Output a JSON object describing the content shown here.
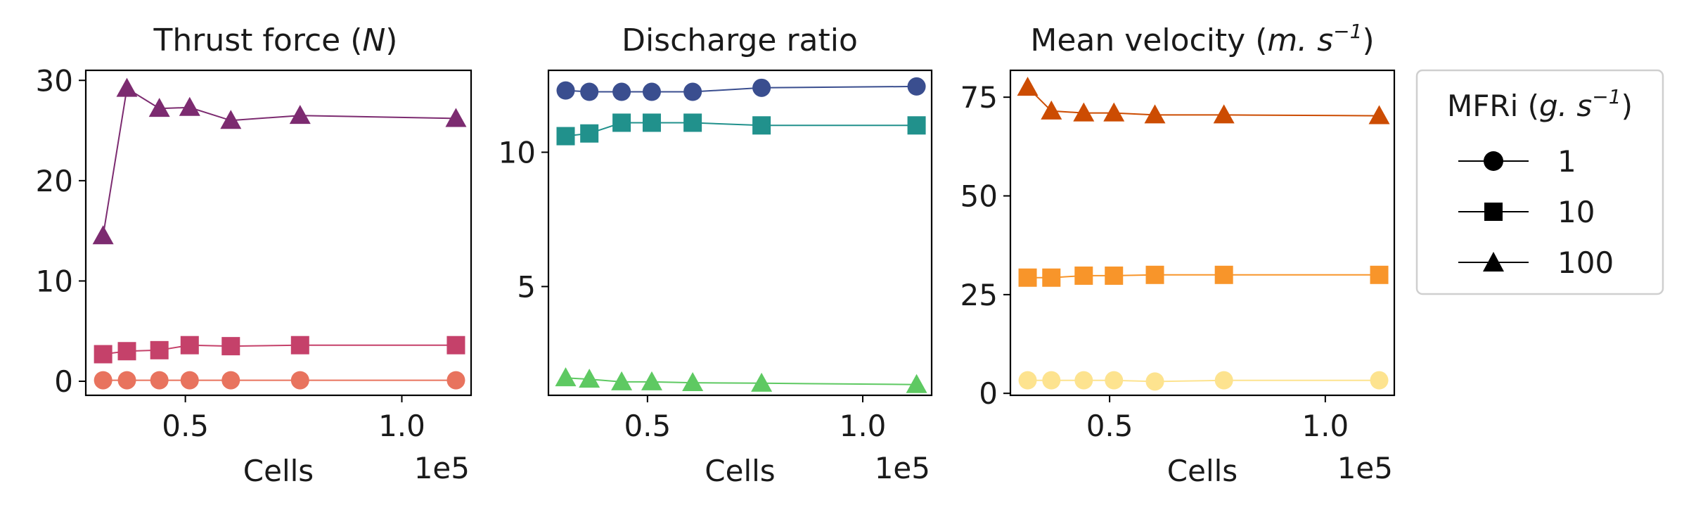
{
  "figure": {
    "panel_titles": [
      "Thrust force",
      "Discharge ratio",
      "Mean velocity"
    ],
    "title_units": {
      "thrust": "N",
      "velocity_base": "m. s",
      "velocity_exp": "−1"
    },
    "legend": {
      "title_base": "MFRi ",
      "title_unit": "g. s",
      "title_exp": "−1",
      "entries": [
        {
          "label": "1",
          "marker": "circle"
        },
        {
          "label": "10",
          "marker": "square"
        },
        {
          "label": "100",
          "marker": "triangle"
        }
      ]
    }
  },
  "chart_data": [
    {
      "type": "line",
      "title": "Thrust force (N)",
      "xlabel": "Cells",
      "x_multiplier": "1e5",
      "x": [
        0.31,
        0.365,
        0.44,
        0.51,
        0.605,
        0.765,
        1.125
      ],
      "xlim": [
        0.27,
        1.16
      ],
      "xticks": [
        0.5,
        1.0
      ],
      "xtick_labels": [
        "0.5",
        "1.0"
      ],
      "ylim": [
        -1.4,
        31
      ],
      "yticks": [
        0,
        10,
        20,
        30
      ],
      "ytick_labels": [
        "0",
        "10",
        "20",
        "30"
      ],
      "series": [
        {
          "name": "1",
          "marker": "circle",
          "color": "#e8735e",
          "values": [
            0.1,
            0.1,
            0.1,
            0.1,
            0.1,
            0.1,
            0.1
          ]
        },
        {
          "name": "10",
          "marker": "square",
          "color": "#c5416a",
          "values": [
            2.7,
            3.0,
            3.1,
            3.6,
            3.5,
            3.6,
            3.6
          ]
        },
        {
          "name": "100",
          "marker": "triangle",
          "color": "#7c2b70",
          "values": [
            14.5,
            29.2,
            27.2,
            27.3,
            26.0,
            26.5,
            26.2
          ]
        }
      ]
    },
    {
      "type": "line",
      "title": "Discharge ratio",
      "xlabel": "Cells",
      "x_multiplier": "1e5",
      "x": [
        0.31,
        0.365,
        0.44,
        0.51,
        0.605,
        0.765,
        1.125
      ],
      "xlim": [
        0.27,
        1.16
      ],
      "xticks": [
        0.5,
        1.0
      ],
      "xtick_labels": [
        "0.5",
        "1.0"
      ],
      "ylim": [
        0.95,
        13.05
      ],
      "yticks": [
        5,
        10
      ],
      "ytick_labels": [
        "5",
        "10"
      ],
      "series": [
        {
          "name": "1",
          "marker": "circle",
          "color": "#3a4e8f",
          "values": [
            12.3,
            12.25,
            12.25,
            12.25,
            12.25,
            12.4,
            12.45
          ]
        },
        {
          "name": "10",
          "marker": "square",
          "color": "#21918c",
          "values": [
            10.6,
            10.7,
            11.1,
            11.1,
            11.1,
            11.0,
            11.0
          ]
        },
        {
          "name": "100",
          "marker": "triangle",
          "color": "#5ec962",
          "values": [
            1.6,
            1.55,
            1.45,
            1.45,
            1.42,
            1.4,
            1.35
          ]
        }
      ]
    },
    {
      "type": "line",
      "title": "Mean velocity (m. s−1)",
      "xlabel": "Cells",
      "x_multiplier": "1e5",
      "x": [
        0.31,
        0.365,
        0.44,
        0.51,
        0.605,
        0.765,
        1.125
      ],
      "xlim": [
        0.27,
        1.16
      ],
      "xticks": [
        0.5,
        1.0
      ],
      "xtick_labels": [
        "0.5",
        "1.0"
      ],
      "ylim": [
        -0.5,
        81.8
      ],
      "yticks": [
        0,
        25,
        50,
        75
      ],
      "ytick_labels": [
        "0",
        "25",
        "50",
        "75"
      ],
      "series": [
        {
          "name": "1",
          "marker": "circle",
          "color": "#fde38f",
          "values": [
            3.3,
            3.3,
            3.3,
            3.3,
            3.0,
            3.3,
            3.3
          ]
        },
        {
          "name": "10",
          "marker": "square",
          "color": "#f8952a",
          "values": [
            29.3,
            29.3,
            29.8,
            29.8,
            30.0,
            30.0,
            30.0
          ]
        },
        {
          "name": "100",
          "marker": "triangle",
          "color": "#cc4c02",
          "values": [
            77.5,
            71.5,
            71.0,
            71.0,
            70.5,
            70.5,
            70.3
          ]
        }
      ]
    }
  ]
}
